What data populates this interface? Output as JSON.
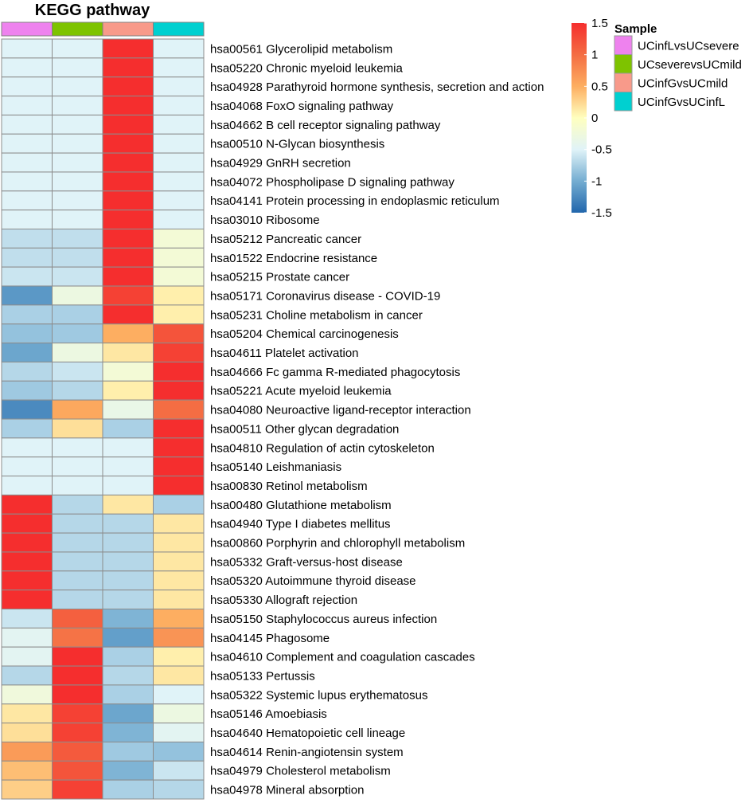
{
  "chart_data": {
    "type": "heatmap",
    "title": "KEGG pathway",
    "columns": [
      "UCinfLvsUCsevere",
      "UCseverevsUCmild",
      "UCinfGvsUCmild",
      "UCinfGvsUCinfL"
    ],
    "column_colors": [
      "#ee82ee",
      "#7ec300",
      "#f89a8a",
      "#00d0d0"
    ],
    "sample_legend_title": "Sample",
    "rows": [
      "hsa00561 Glycerolipid metabolism",
      "hsa05220 Chronic myeloid leukemia",
      "hsa04928 Parathyroid hormone synthesis, secretion and action",
      "hsa04068 FoxO signaling pathway",
      "hsa04662 B cell receptor signaling pathway",
      "hsa00510 N-Glycan biosynthesis",
      "hsa04929 GnRH secretion",
      "hsa04072 Phospholipase D signaling pathway",
      "hsa04141 Protein processing in endoplasmic reticulum",
      "hsa03010 Ribosome",
      "hsa05212 Pancreatic cancer",
      "hsa01522 Endocrine resistance",
      "hsa05215 Prostate cancer",
      "hsa05171 Coronavirus disease - COVID-19",
      "hsa05231 Choline metabolism in cancer",
      "hsa05204 Chemical carcinogenesis",
      "hsa04611 Platelet activation",
      "hsa04666 Fc gamma R-mediated phagocytosis",
      "hsa05221 Acute myeloid leukemia",
      "hsa04080 Neuroactive ligand-receptor interaction",
      "hsa00511 Other glycan degradation",
      "hsa04810 Regulation of actin cytoskeleton",
      "hsa05140 Leishmaniasis",
      "hsa00830 Retinol metabolism",
      "hsa00480 Glutathione metabolism",
      "hsa04940 Type I diabetes mellitus",
      "hsa00860 Porphyrin and chlorophyll metabolism",
      "hsa05332 Graft-versus-host disease",
      "hsa05320 Autoimmune thyroid disease",
      "hsa05330 Allograft rejection",
      "hsa05150 Staphylococcus aureus infection",
      "hsa04145 Phagosome",
      "hsa04610 Complement and coagulation cascades",
      "hsa05133 Pertussis",
      "hsa05322 Systemic lupus erythematosus",
      "hsa05146 Amoebiasis",
      "hsa04640 Hematopoietic cell lineage",
      "hsa04614 Renin-angiotensin system",
      "hsa04979 Cholesterol metabolism",
      "hsa04978 Mineral absorption"
    ],
    "values": [
      [
        -0.5,
        -0.5,
        1.5,
        -0.5
      ],
      [
        -0.5,
        -0.5,
        1.5,
        -0.5
      ],
      [
        -0.5,
        -0.5,
        1.5,
        -0.5
      ],
      [
        -0.5,
        -0.5,
        1.5,
        -0.5
      ],
      [
        -0.5,
        -0.5,
        1.5,
        -0.5
      ],
      [
        -0.5,
        -0.5,
        1.5,
        -0.5
      ],
      [
        -0.5,
        -0.5,
        1.5,
        -0.5
      ],
      [
        -0.5,
        -0.5,
        1.5,
        -0.5
      ],
      [
        -0.5,
        -0.5,
        1.5,
        -0.5
      ],
      [
        -0.5,
        -0.5,
        1.5,
        -0.5
      ],
      [
        -0.65,
        -0.65,
        1.5,
        -0.2
      ],
      [
        -0.65,
        -0.65,
        1.5,
        -0.2
      ],
      [
        -0.6,
        -0.6,
        1.5,
        -0.2
      ],
      [
        -1.15,
        -0.3,
        1.35,
        0.1
      ],
      [
        -0.75,
        -0.75,
        1.5,
        0.1
      ],
      [
        -0.85,
        -0.8,
        0.5,
        1.2
      ],
      [
        -1.05,
        -0.3,
        0.15,
        1.35
      ],
      [
        -0.7,
        -0.6,
        -0.2,
        1.5
      ],
      [
        -0.8,
        -0.7,
        0.1,
        1.5
      ],
      [
        -1.25,
        0.55,
        -0.35,
        1.0
      ],
      [
        -0.75,
        0.2,
        -0.75,
        1.5
      ],
      [
        -0.5,
        -0.5,
        -0.5,
        1.5
      ],
      [
        -0.5,
        -0.5,
        -0.5,
        1.5
      ],
      [
        -0.5,
        -0.5,
        -0.5,
        1.5
      ],
      [
        1.5,
        -0.7,
        0.15,
        -0.75
      ],
      [
        1.5,
        -0.7,
        -0.7,
        0.15
      ],
      [
        1.5,
        -0.7,
        -0.7,
        0.15
      ],
      [
        1.5,
        -0.7,
        -0.7,
        0.15
      ],
      [
        1.5,
        -0.7,
        -0.7,
        0.15
      ],
      [
        1.5,
        -0.7,
        -0.7,
        0.15
      ],
      [
        -0.6,
        1.1,
        -0.95,
        0.5
      ],
      [
        -0.45,
        0.95,
        -1.1,
        0.7
      ],
      [
        -0.45,
        1.5,
        -0.75,
        0.1
      ],
      [
        -0.7,
        1.5,
        -0.7,
        0.15
      ],
      [
        -0.25,
        1.5,
        -0.75,
        -0.5
      ],
      [
        0.15,
        1.35,
        -1.05,
        -0.3
      ],
      [
        0.2,
        1.35,
        -0.95,
        -0.45
      ],
      [
        0.65,
        1.15,
        -0.8,
        -0.85
      ],
      [
        0.4,
        1.2,
        -0.95,
        -0.6
      ],
      [
        0.3,
        1.35,
        -0.75,
        -0.7
      ]
    ],
    "colorbar": {
      "range": [
        -1.5,
        1.5
      ],
      "ticks": [
        "1.5",
        "1",
        "0.5",
        "0",
        "-0.5",
        "-1",
        "-1.5"
      ],
      "stops": [
        "#2166ac",
        "#74add1",
        "#e0f3f8",
        "#ffffbf",
        "#fdae61",
        "#f46d43",
        "#f52e2e"
      ]
    }
  }
}
